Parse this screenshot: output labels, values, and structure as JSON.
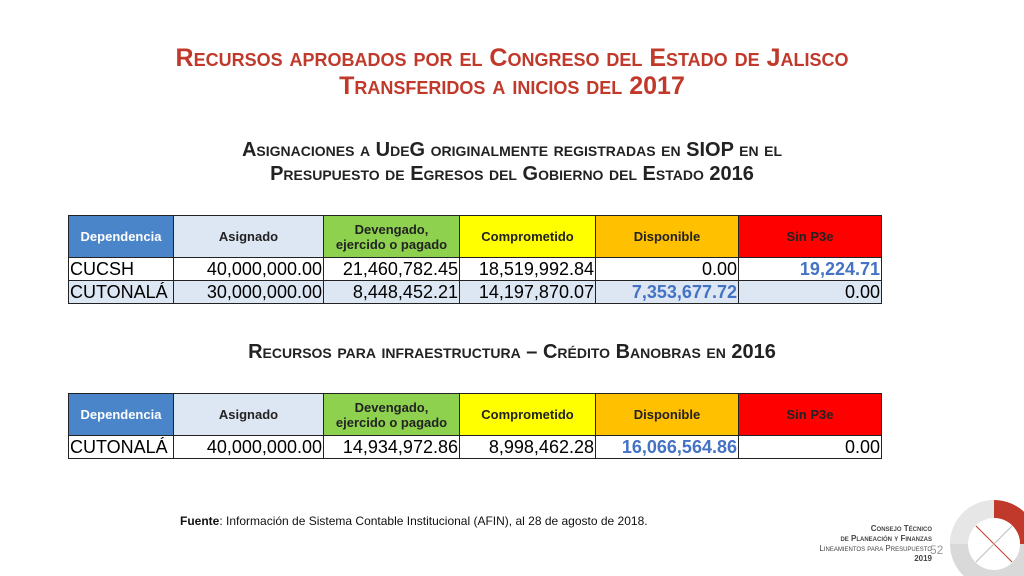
{
  "title": {
    "line1": "Recursos aprobados por el Congreso del Estado de Jalisco",
    "line2": "Transferidos a inicios del 2017"
  },
  "section1": {
    "line1": "Asignaciones a UdeG originalmente registradas en SIOP en el",
    "line2": "Presupuesto de Egresos del Gobierno del Estado 2016"
  },
  "section2": {
    "title": "Recursos para infraestructura – Crédito Banobras en 2016"
  },
  "headers": {
    "dependencia": "Dependencia",
    "asignado": "Asignado",
    "devengado_1": "Devengado,",
    "devengado_2": "ejercido o pagado",
    "comprometido": "Comprometido",
    "disponible": "Disponible",
    "sin_p3e": "Sin P3e"
  },
  "table1": [
    {
      "dependencia": "CUCSH",
      "asignado": "40,000,000.00",
      "devengado": "21,460,782.45",
      "comprometido": "18,519,992.84",
      "disponible": "0.00",
      "sin_p3e": "19,224.71"
    },
    {
      "dependencia": "CUTONALÁ",
      "asignado": "30,000,000.00",
      "devengado": "8,448,452.21",
      "comprometido": "14,197,870.07",
      "disponible": "7,353,677.72",
      "sin_p3e": "0.00"
    }
  ],
  "table2": [
    {
      "dependencia": "CUTONALÁ",
      "asignado": "40,000,000.00",
      "devengado": "14,934,972.86",
      "comprometido": "8,998,462.28",
      "disponible": "16,066,564.86",
      "sin_p3e": "0.00"
    }
  ],
  "source": {
    "label": "Fuente",
    "text": ": Información de Sistema Contable Institucional (AFIN), al 28 de agosto de 2018."
  },
  "logo": {
    "line1": "Consejo Técnico",
    "line2": "de Planeación y Finanzas",
    "line3": "Lineamientos para Presupuesto",
    "year": "2019"
  },
  "page_number": "52",
  "colors": {
    "title": "#c0392b",
    "highlight": "#4472c4",
    "dependencia_header": "#4a84c9",
    "devengado_header": "#8dd14f",
    "comprometido_header": "#ffff00",
    "disponible_header": "#ffc000",
    "sin_p3e_header": "#ff0000"
  }
}
